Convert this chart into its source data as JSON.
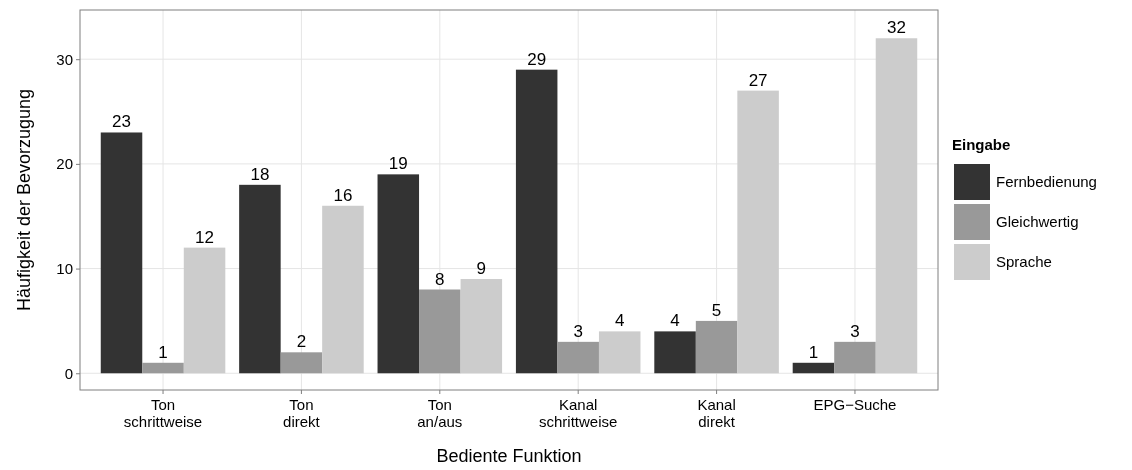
{
  "chart_data": {
    "type": "bar",
    "xlabel": "Bediente Funktion",
    "ylabel": "Häufigkeit der Bevorzugung",
    "legend_title": "Eingabe",
    "categories": [
      "Ton\nschrittweise",
      "Ton\ndirekt",
      "Ton\nan/aus",
      "Kanal\nschrittweise",
      "Kanal\ndirekt",
      "EPG−Suche"
    ],
    "series": [
      {
        "name": "Fernbedienung",
        "color": "#333333",
        "values": [
          23,
          18,
          19,
          29,
          4,
          1
        ]
      },
      {
        "name": "Gleichwertig",
        "color": "#999999",
        "values": [
          1,
          2,
          8,
          3,
          5,
          3
        ]
      },
      {
        "name": "Sprache",
        "color": "#cccccc",
        "values": [
          12,
          16,
          9,
          4,
          27,
          32
        ]
      }
    ],
    "ylim": [
      -1.6,
      34.7
    ],
    "yticks": [
      0,
      10,
      20,
      30
    ],
    "grid": true,
    "legend": "right",
    "data_labels": true
  }
}
